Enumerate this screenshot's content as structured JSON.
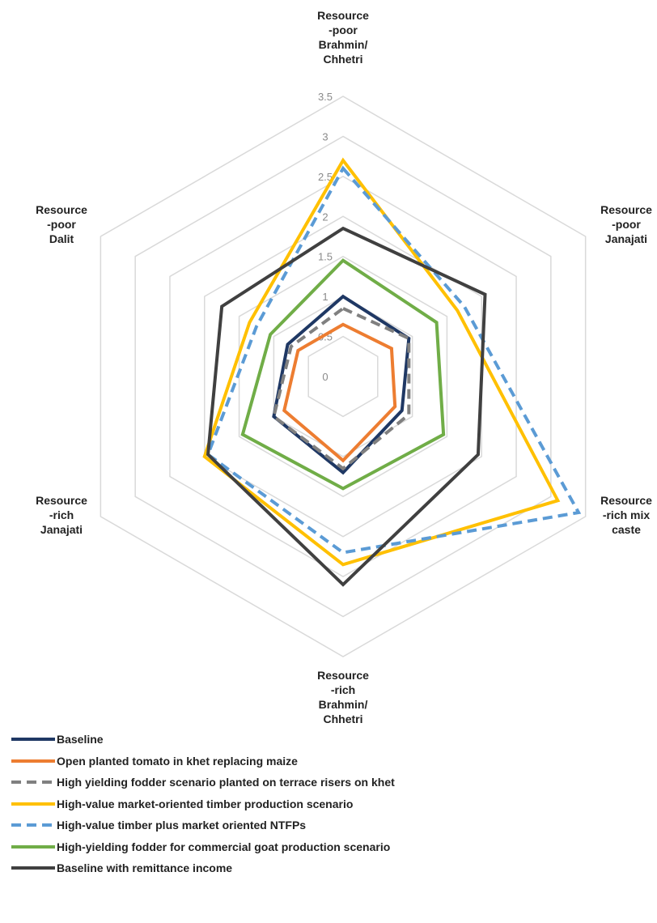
{
  "chart_data": {
    "type": "radar",
    "categories": [
      [
        "Resource",
        "-poor",
        "Brahmin/",
        "Chhetri"
      ],
      [
        "Resource",
        "-poor",
        "Janajati"
      ],
      [
        "Resource",
        "-rich mix",
        "caste"
      ],
      [
        "Resource",
        "-rich",
        "Brahmin/",
        "Chhetri"
      ],
      [
        "Resource",
        "-rich",
        "Janajati"
      ],
      [
        "Resource",
        "-poor",
        "Dalit"
      ]
    ],
    "range": [
      0,
      3.5
    ],
    "ticks": [
      "0",
      "0.5",
      "1",
      "1.5",
      "2",
      "2.5",
      "3",
      "3.5"
    ],
    "grid": true,
    "legend_position": "bottom",
    "series": [
      {
        "name": "Baseline",
        "color": "#1f3864",
        "dash": "solid",
        "values": [
          1.0,
          0.95,
          0.85,
          1.2,
          1.0,
          0.8
        ]
      },
      {
        "name": "Open planted tomato in khet replacing maize",
        "color": "#ed7d31",
        "dash": "solid",
        "values": [
          0.65,
          0.7,
          0.75,
          1.05,
          0.85,
          0.65
        ]
      },
      {
        "name": "High yielding fodder scenario planted on terrace risers on khet",
        "color": "#808080",
        "dash": "dashed",
        "values": [
          0.85,
          0.95,
          0.95,
          1.15,
          1.0,
          0.75
        ]
      },
      {
        "name": "High-value market-oriented timber production scenario",
        "color": "#ffc000",
        "dash": "solid",
        "values": [
          2.7,
          1.65,
          3.1,
          2.35,
          2.0,
          1.35
        ]
      },
      {
        "name": "High-value timber plus market oriented NTFPs",
        "color": "#5b9bd5",
        "dash": "dashed",
        "values": [
          2.6,
          1.75,
          3.4,
          2.2,
          1.95,
          1.25
        ]
      },
      {
        "name": "High-yielding fodder for commercial goat production scenario",
        "color": "#70ad47",
        "dash": "solid",
        "values": [
          1.45,
          1.35,
          1.45,
          1.4,
          1.45,
          1.05
        ]
      },
      {
        "name": "Baseline with remittance income",
        "color": "#404040",
        "dash": "solid",
        "values": [
          1.85,
          2.05,
          1.95,
          2.6,
          1.95,
          1.75
        ]
      }
    ]
  }
}
